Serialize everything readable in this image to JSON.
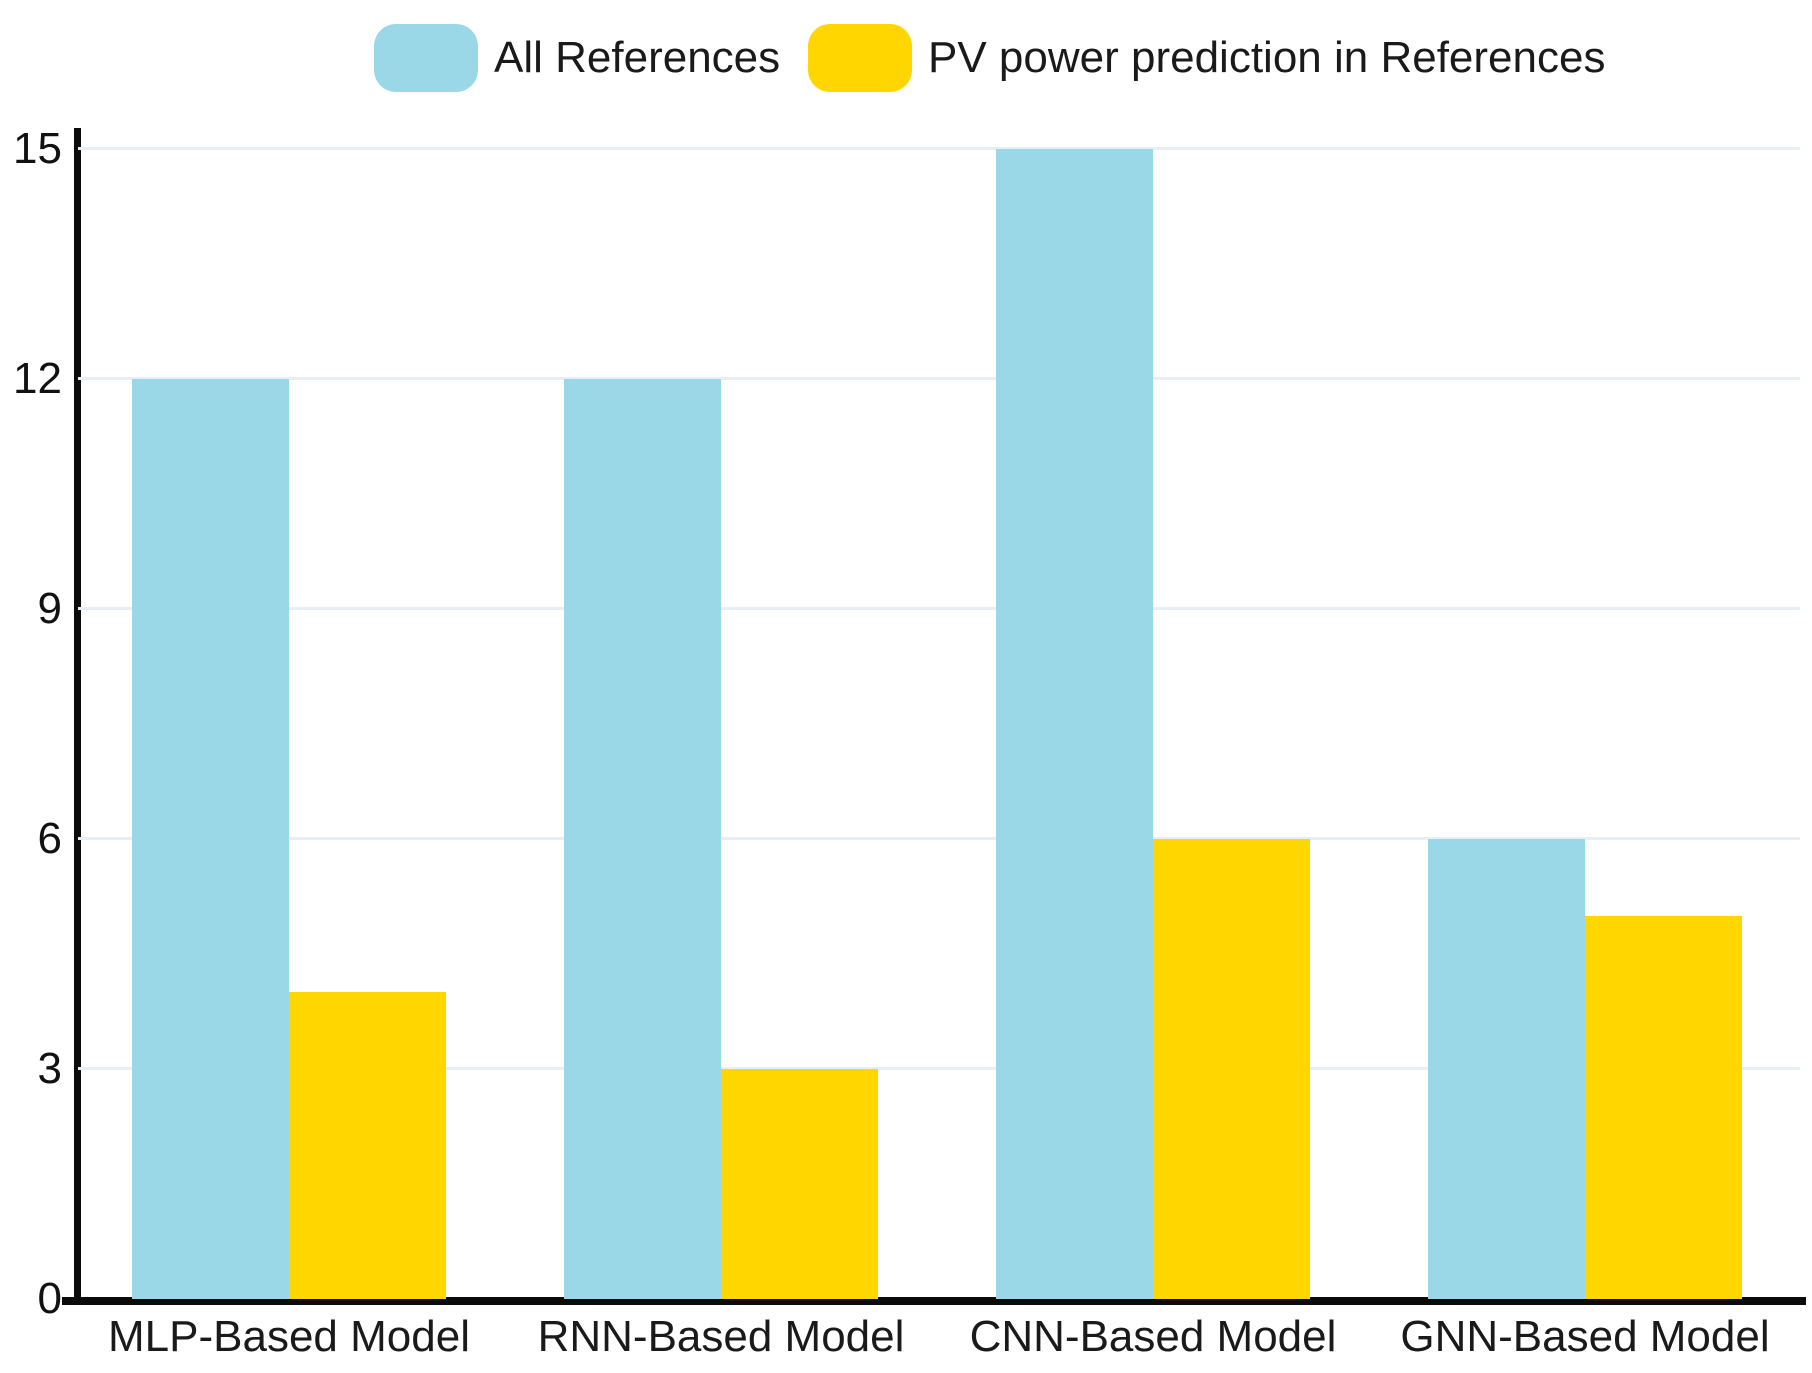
{
  "chart_data": {
    "type": "bar",
    "title": "",
    "xlabel": "",
    "ylabel": "",
    "categories": [
      "MLP-Based Model",
      "RNN-Based Model",
      "CNN-Based Model",
      "GNN-Based Model"
    ],
    "series": [
      {
        "name": "All References",
        "color": "#9AD7E7",
        "values": [
          12,
          12,
          15,
          6
        ]
      },
      {
        "name": "PV power prediction in References",
        "color": "#FFD600",
        "values": [
          4,
          3,
          6,
          5
        ]
      }
    ],
    "ylim": [
      0,
      15
    ],
    "yticks": [
      0,
      3,
      6,
      9,
      12,
      15
    ],
    "grid": true,
    "legend_position": "top"
  },
  "colors": {
    "gridline": "#E8EEF5",
    "axis": "#0B0B0B",
    "text": "#1A1A1A",
    "background": "#FFFFFF"
  }
}
